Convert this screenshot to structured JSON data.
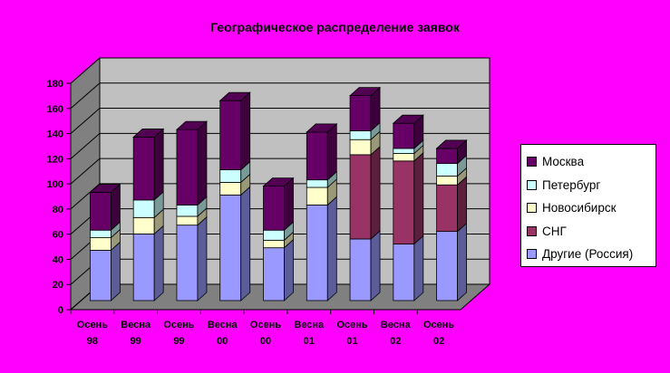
{
  "chart_data": {
    "type": "bar",
    "stacked": true,
    "three_d": true,
    "title": "Географическое распределение заявок",
    "xlabel": "",
    "ylabel": "",
    "ylim": [
      0,
      180
    ],
    "yticks": [
      0,
      20,
      40,
      60,
      80,
      100,
      120,
      140,
      160,
      180
    ],
    "grid": true,
    "legend_position": "right",
    "categories": [
      [
        "Осень",
        "98"
      ],
      [
        "Весна",
        "99"
      ],
      [
        "Осень",
        "99"
      ],
      [
        "Весна",
        "00"
      ],
      [
        "Осень",
        "00"
      ],
      [
        "Весна",
        "01"
      ],
      [
        "Осень",
        "01"
      ],
      [
        "Весна",
        "02"
      ],
      [
        "Осень",
        "02"
      ]
    ],
    "series": [
      {
        "name": "Другие (Россия)",
        "color": "#9999ff",
        "values": [
          40,
          53,
          60,
          84,
          42,
          76,
          49,
          45,
          55
        ]
      },
      {
        "name": "СНГ",
        "color": "#993366",
        "values": [
          0,
          0,
          0,
          0,
          0,
          0,
          67,
          66,
          37
        ]
      },
      {
        "name": "Новосибирск",
        "color": "#ffffcc",
        "values": [
          10,
          13,
          7,
          10,
          6,
          14,
          12,
          6,
          7
        ]
      },
      {
        "name": "Петербург",
        "color": "#ccffff",
        "values": [
          6,
          14,
          9,
          10,
          8,
          6,
          7,
          4,
          10
        ]
      },
      {
        "name": "Москва",
        "color": "#660066",
        "values": [
          30,
          50,
          60,
          55,
          35,
          38,
          28,
          20,
          12
        ]
      }
    ],
    "legend_order": [
      "Москва",
      "Петербург",
      "Новосибирск",
      "СНГ",
      "Другие (Россия)"
    ]
  }
}
